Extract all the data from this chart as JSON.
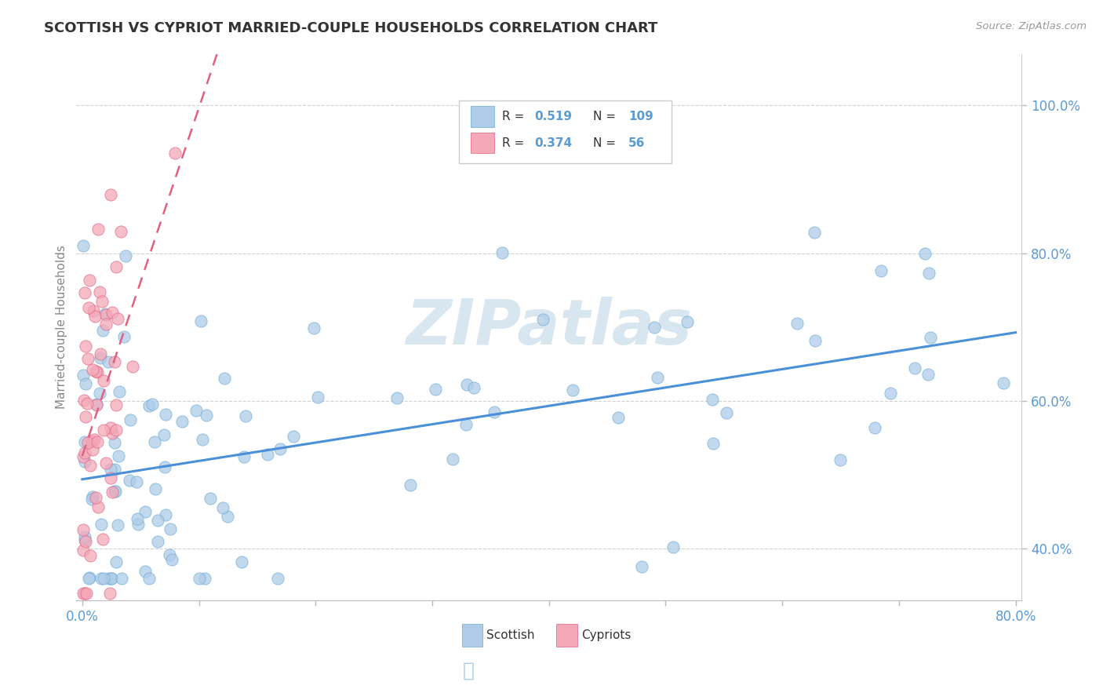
{
  "title": "SCOTTISH VS CYPRIOT MARRIED-COUPLE HOUSEHOLDS CORRELATION CHART",
  "source_text": "Source: ZipAtlas.com",
  "ylabel": "Married-couple Households",
  "xlim": [
    -0.005,
    0.805
  ],
  "ylim": [
    0.33,
    1.07
  ],
  "ytick_values": [
    0.4,
    0.6,
    0.8,
    1.0
  ],
  "ytick_labels": [
    "40.0%",
    "60.0%",
    "80.0%",
    "100.0%"
  ],
  "xtick_values": [
    0.0,
    0.1,
    0.2,
    0.3,
    0.4,
    0.5,
    0.6,
    0.7,
    0.8
  ],
  "scottish_R": 0.519,
  "scottish_N": 109,
  "cypriot_R": 0.374,
  "cypriot_N": 56,
  "scottish_color": "#aecce8",
  "cypriot_color": "#f4a8b8",
  "scottish_edge_color": "#6aaad4",
  "cypriot_edge_color": "#e06080",
  "scottish_trend_color": "#4a90d9",
  "cypriot_trend_color": "#e06080",
  "watermark_color": "#d8e6f0",
  "background_color": "#ffffff",
  "title_color": "#333333",
  "axis_label_color": "#5b9bd5",
  "grid_color": "#cccccc",
  "title_fontsize": 13,
  "tick_fontsize": 12
}
